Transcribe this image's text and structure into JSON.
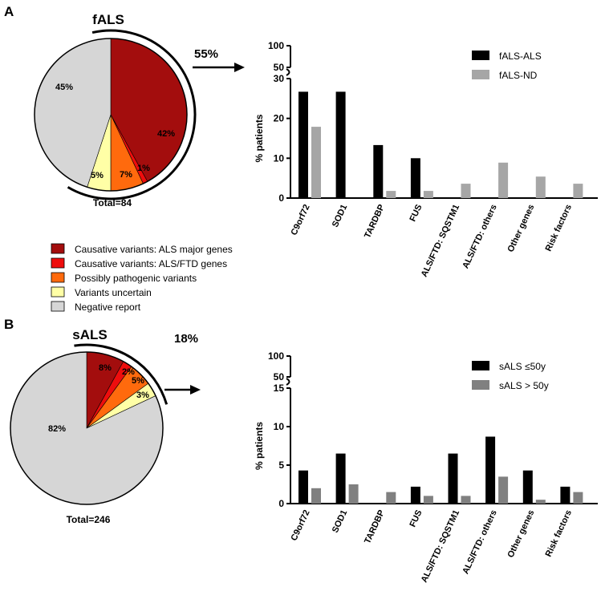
{
  "figure": {
    "panels": [
      {
        "letter": "A"
      },
      {
        "letter": "B"
      }
    ],
    "legend": {
      "items": [
        {
          "label": "Causative variants: ALS major genes",
          "color": "#a30d0d"
        },
        {
          "label": "Causative variants: ALS/FTD genes",
          "color": "#ee0d0d"
        },
        {
          "label": "Possibly pathogenic variants",
          "color": "#ff6a0d"
        },
        {
          "label": "Variants uncertain",
          "color": "#ffffa6"
        },
        {
          "label": "Negative report",
          "color": "#d6d6d6"
        }
      ]
    },
    "colors": {
      "black_series": "#000000",
      "gray_series_a": "#a6a6a6",
      "gray_series_b": "#808080",
      "pie_border": "#000000"
    }
  },
  "chart_data": [
    {
      "type": "pie",
      "title": "fALS",
      "total_label": "Total=84",
      "bracket_label": "55%",
      "slices": [
        {
          "label": "42%",
          "value": 42,
          "category": "Causative variants: ALS major genes",
          "color": "#a30d0d"
        },
        {
          "label": "1%",
          "value": 1,
          "category": "Causative variants: ALS/FTD genes",
          "color": "#ee0d0d"
        },
        {
          "label": "7%",
          "value": 7,
          "category": "Possibly pathogenic variants",
          "color": "#ff6a0d"
        },
        {
          "label": "5%",
          "value": 5,
          "category": "Variants uncertain",
          "color": "#ffffa6"
        },
        {
          "label": "45%",
          "value": 45,
          "category": "Negative report",
          "color": "#d6d6d6"
        }
      ]
    },
    {
      "type": "bar",
      "ylabel": "% patients",
      "categories": [
        "C9orf72",
        "SOD1",
        "TARDBP",
        "FUS",
        "ALS/FTD: SQSTM1",
        "ALS/FTD: others",
        "Other genes",
        "Risk factors"
      ],
      "series": [
        {
          "name": "fALS-ALS",
          "color": "#000000",
          "values": [
            26.7,
            26.7,
            13.3,
            10,
            0,
            0,
            0,
            0
          ]
        },
        {
          "name": "fALS-ND",
          "color": "#a6a6a6",
          "values": [
            17.9,
            0,
            1.8,
            1.8,
            3.6,
            8.9,
            5.4,
            3.6
          ]
        }
      ],
      "ylim_lower": [
        0,
        30
      ],
      "ylim_upper": [
        50,
        100
      ],
      "yticks": [
        "0",
        "10",
        "20",
        "30",
        "50",
        "100"
      ],
      "broken_axis": true,
      "legend_position": "top-right"
    },
    {
      "type": "pie",
      "title": "sALS",
      "total_label": "Total=246",
      "bracket_label": "18%",
      "slices": [
        {
          "label": "8%",
          "value": 8,
          "category": "Causative variants: ALS major genes",
          "color": "#a30d0d"
        },
        {
          "label": "2%",
          "value": 2,
          "category": "Causative variants: ALS/FTD genes",
          "color": "#ee0d0d"
        },
        {
          "label": "5%",
          "value": 5,
          "category": "Possibly pathogenic variants",
          "color": "#ff6a0d"
        },
        {
          "label": "3%",
          "value": 3,
          "category": "Variants uncertain",
          "color": "#ffffa6"
        },
        {
          "label": "82%",
          "value": 82,
          "category": "Negative report",
          "color": "#d6d6d6"
        }
      ]
    },
    {
      "type": "bar",
      "ylabel": "% patients",
      "categories": [
        "C9orf72",
        "SOD1",
        "TARDBP",
        "FUS",
        "ALS/FTD: SQSTM1",
        "ALS/FTD: others",
        "Other genes",
        "Risk factors"
      ],
      "series": [
        {
          "name": "sALS ≤50y",
          "color": "#000000",
          "values": [
            4.3,
            6.5,
            0,
            2.2,
            6.5,
            8.7,
            4.3,
            2.2
          ]
        },
        {
          "name": "sALS > 50y",
          "color": "#808080",
          "values": [
            2,
            2.5,
            1.5,
            1,
            1,
            3.5,
            0.5,
            1.5
          ]
        }
      ],
      "ylim_lower": [
        0,
        15
      ],
      "ylim_upper": [
        50,
        100
      ],
      "yticks": [
        "0",
        "5",
        "10",
        "15",
        "50",
        "100"
      ],
      "broken_axis": true,
      "legend_position": "top-right"
    }
  ]
}
